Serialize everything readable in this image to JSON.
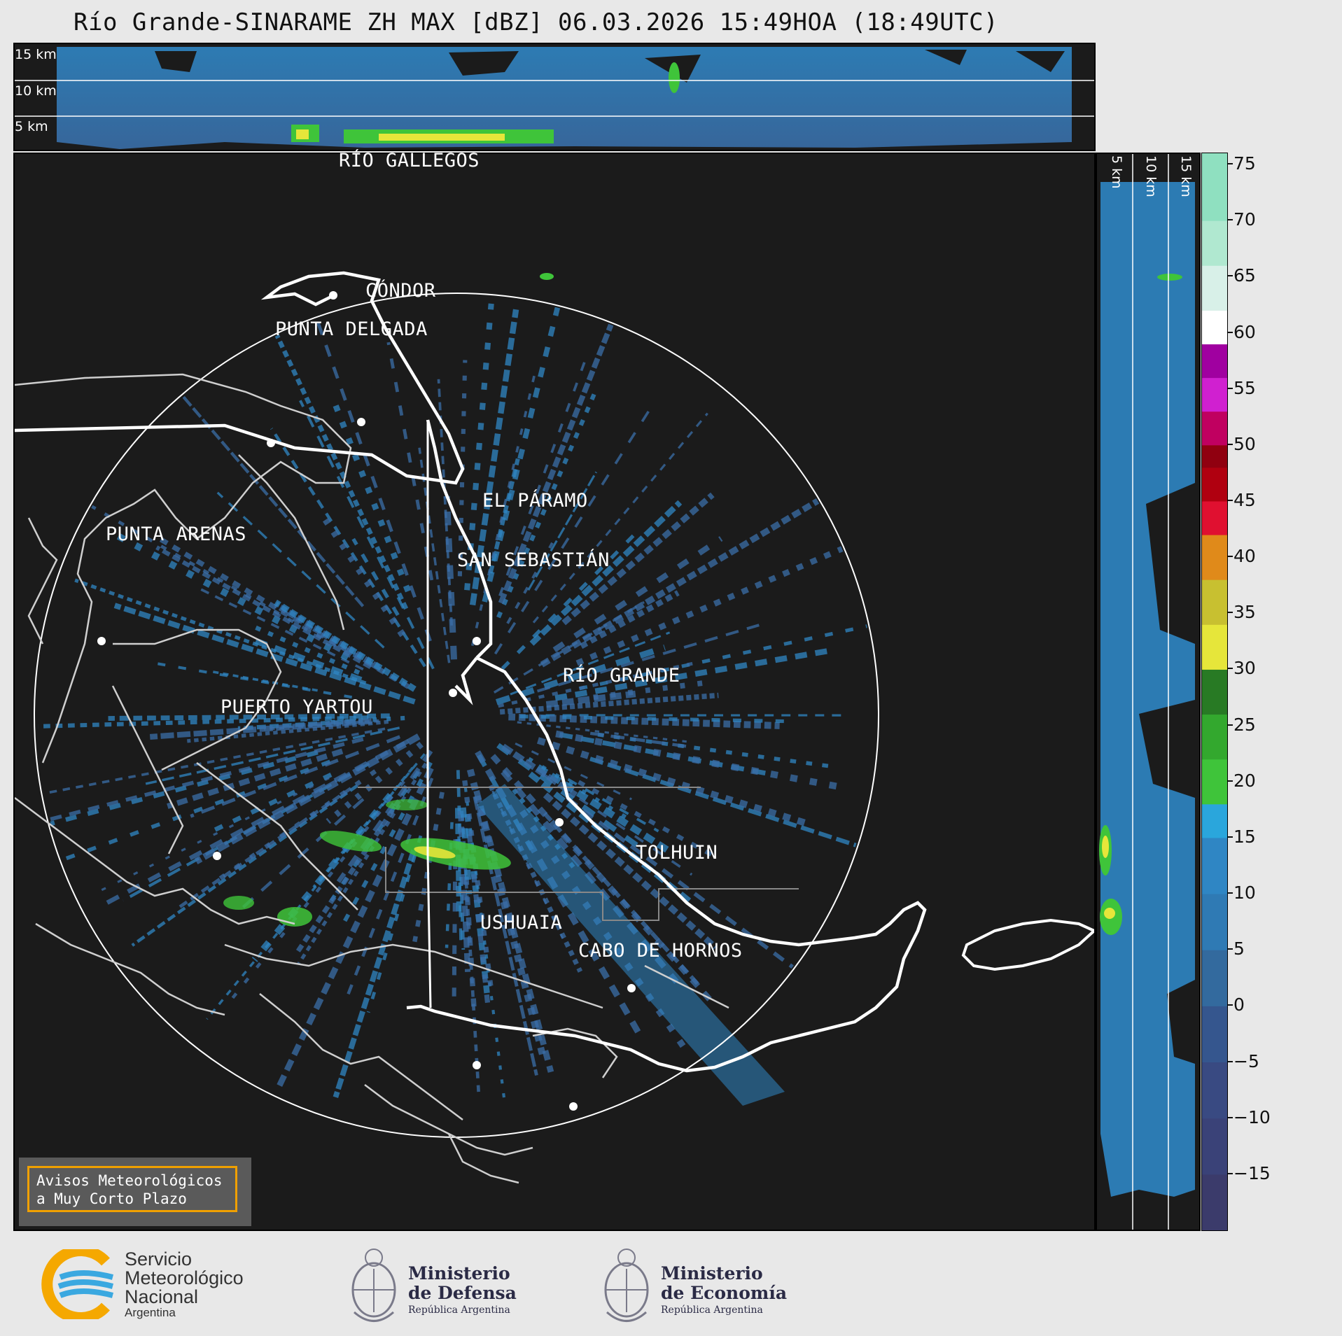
{
  "title": "Río Grande-SINARAME ZH MAX [dBZ] 06.03.2026 15:49HOA (18:49UTC)",
  "top_panel": {
    "height_labels": [
      "15 km",
      "10 km",
      "5 km"
    ]
  },
  "side_panel": {
    "height_labels": [
      "5 km",
      "10 km",
      "15 km"
    ]
  },
  "cities": [
    {
      "name": "RÍO GALLEGOS"
    },
    {
      "name": "CÓNDOR"
    },
    {
      "name": "PUNTA DELGADA"
    },
    {
      "name": "EL PÁRAMO"
    },
    {
      "name": "PUNTA ARENAS"
    },
    {
      "name": "SAN SEBASTIÁN"
    },
    {
      "name": "RÍO GRANDE"
    },
    {
      "name": "PUERTO YARTOU"
    },
    {
      "name": "TOLHUIN"
    },
    {
      "name": "USHUAIA"
    },
    {
      "name": "CABO DE HORNOS"
    }
  ],
  "colorbar": {
    "unit": "dBZ",
    "ticks": [
      "75",
      "70",
      "65",
      "60",
      "55",
      "50",
      "45",
      "40",
      "35",
      "30",
      "25",
      "20",
      "15",
      "10",
      "5",
      "0",
      "−5",
      "−10",
      "−15"
    ],
    "colors": {
      "dbz_low": "#3a3d6e",
      "dbz_blue": "#2f86c4",
      "dbz_green": "#3fc43a",
      "dbz_yellow": "#e6e63a",
      "dbz_orange": "#e08a1a",
      "dbz_red": "#d01020",
      "dbz_magenta": "#d020d0",
      "dbz_white": "#ffffff",
      "dbz_mint": "#8fe0c0"
    }
  },
  "warning_box": {
    "line1": "Avisos Meteorológicos",
    "line2": "a Muy Corto Plazo"
  },
  "logos": {
    "smn": {
      "line1": "Servicio",
      "line2": "Meteorológico",
      "line3": "Nacional",
      "line4": "Argentina"
    },
    "defensa": {
      "line1": "Ministerio",
      "line2": "de Defensa",
      "line3": "República Argentina"
    },
    "economia": {
      "line1": "Ministerio",
      "line2": "de Economía",
      "line3": "República Argentina"
    }
  }
}
